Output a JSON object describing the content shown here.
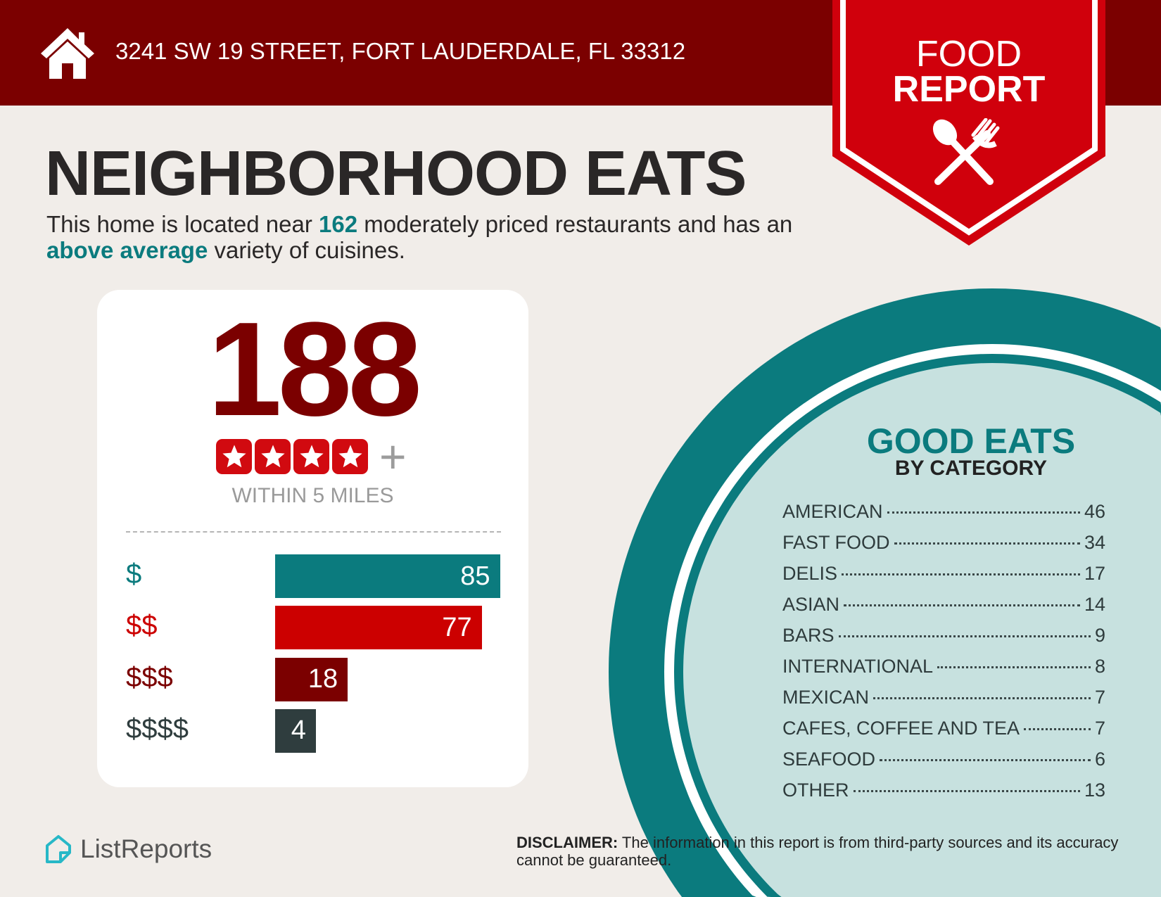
{
  "header": {
    "address": "3241 SW 19 STREET, FORT LAUDERDALE, FL 33312",
    "icon": "house-icon"
  },
  "ribbon": {
    "line1": "FOOD",
    "line2": "REPORT",
    "icon": "spoon-fork-icon",
    "color": "#d0000c"
  },
  "title": "NEIGHBORHOOD EATS",
  "subtitle": {
    "p1": "This home is located near ",
    "count": "162",
    "p2": " moderately priced restaurants and has an ",
    "variety": "above average",
    "p3": " variety of cuisines."
  },
  "card": {
    "total": "188",
    "stars": 4,
    "plus": "+",
    "within": "WITHIN 5 MILES",
    "price_bars": [
      {
        "label": "$",
        "value": 85,
        "color": "#0b7b7e",
        "label_color": "#0b7b7e"
      },
      {
        "label": "$$",
        "value": 77,
        "color": "#cc0000",
        "label_color": "#cc0000"
      },
      {
        "label": "$$$",
        "value": 18,
        "color": "#7b0000",
        "label_color": "#7b0000"
      },
      {
        "label": "$$$$",
        "value": 4,
        "color": "#2f3d3e",
        "label_color": "#2f3d3e"
      }
    ]
  },
  "categories": {
    "title": "GOOD EATS",
    "subtitle": "BY CATEGORY",
    "items": [
      {
        "name": "AMERICAN",
        "count": "46"
      },
      {
        "name": "FAST FOOD",
        "count": "34"
      },
      {
        "name": "DELIS",
        "count": "17"
      },
      {
        "name": "ASIAN",
        "count": "14"
      },
      {
        "name": "BARS",
        "count": "9"
      },
      {
        "name": "INTERNATIONAL",
        "count": "8"
      },
      {
        "name": "MEXICAN",
        "count": "7"
      },
      {
        "name": "CAFES, COFFEE AND TEA",
        "count": "7"
      },
      {
        "name": "SEAFOOD",
        "count": "6"
      },
      {
        "name": "OTHER",
        "count": "13"
      }
    ]
  },
  "footer": {
    "logo": "ListReports",
    "disclaimer_label": "DISCLAIMER:",
    "disclaimer_text": " The information in this report is from third-party sources and its accuracy cannot be guaranteed."
  },
  "colors": {
    "maroon": "#7b0000",
    "teal": "#0b7b7e",
    "light_teal": "#c7e1df",
    "background": "#f1ede9"
  }
}
